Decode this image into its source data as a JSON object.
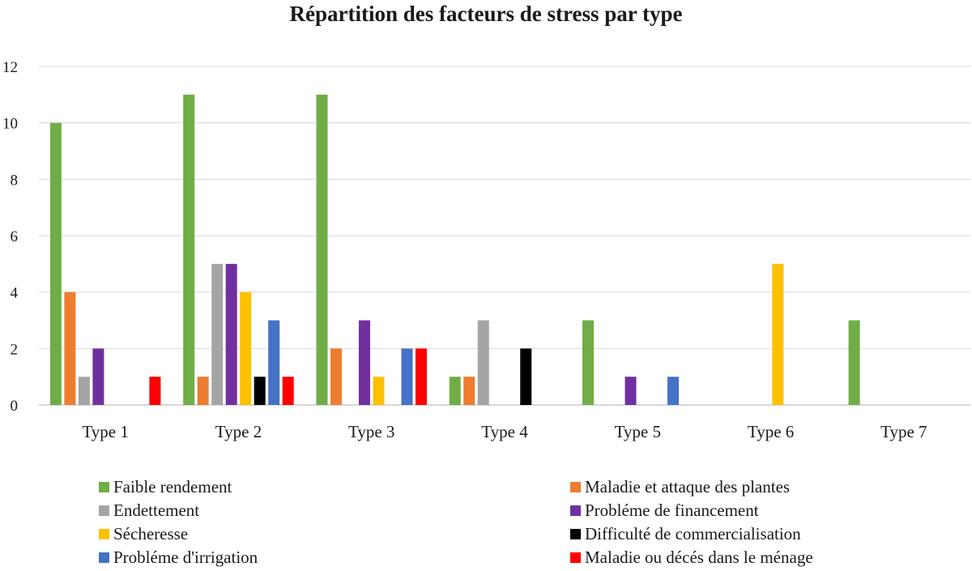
{
  "chart_data": {
    "type": "bar",
    "title": "Répartition des facteurs de stress par type",
    "xlabel": "",
    "ylabel": "",
    "ylim": [
      0,
      12
    ],
    "ytick_step": 2,
    "grid": true,
    "legend_position": "bottom",
    "categories": [
      "Type 1",
      "Type 2",
      "Type 3",
      "Type 4",
      "Type 5",
      "Type 6",
      "Type 7"
    ],
    "series": [
      {
        "name": "Faible rendement",
        "color": "#70AD47",
        "values": [
          10,
          11,
          11,
          1,
          3,
          0,
          3
        ]
      },
      {
        "name": "Maladie et attaque des plantes",
        "color": "#ED7D31",
        "values": [
          4,
          1,
          2,
          1,
          0,
          0,
          0
        ]
      },
      {
        "name": "Endettement",
        "color": "#A5A5A5",
        "values": [
          1,
          5,
          0,
          3,
          0,
          0,
          0
        ]
      },
      {
        "name": "Probléme de financement",
        "color": "#7030A0",
        "values": [
          2,
          5,
          3,
          0,
          1,
          0,
          0
        ]
      },
      {
        "name": "Sécheresse",
        "color": "#FFC000",
        "values": [
          0,
          4,
          1,
          0,
          0,
          5,
          0
        ]
      },
      {
        "name": "Difficulté de commercialisation",
        "color": "#000000",
        "values": [
          0,
          1,
          0,
          2,
          0,
          0,
          0
        ]
      },
      {
        "name": "Probléme d'irrigation",
        "color": "#4472C4",
        "values": [
          0,
          3,
          2,
          0,
          1,
          0,
          0
        ]
      },
      {
        "name": "Maladie ou décés dans le ménage",
        "color": "#FF0000",
        "values": [
          1,
          1,
          2,
          0,
          0,
          0,
          0
        ]
      }
    ]
  }
}
